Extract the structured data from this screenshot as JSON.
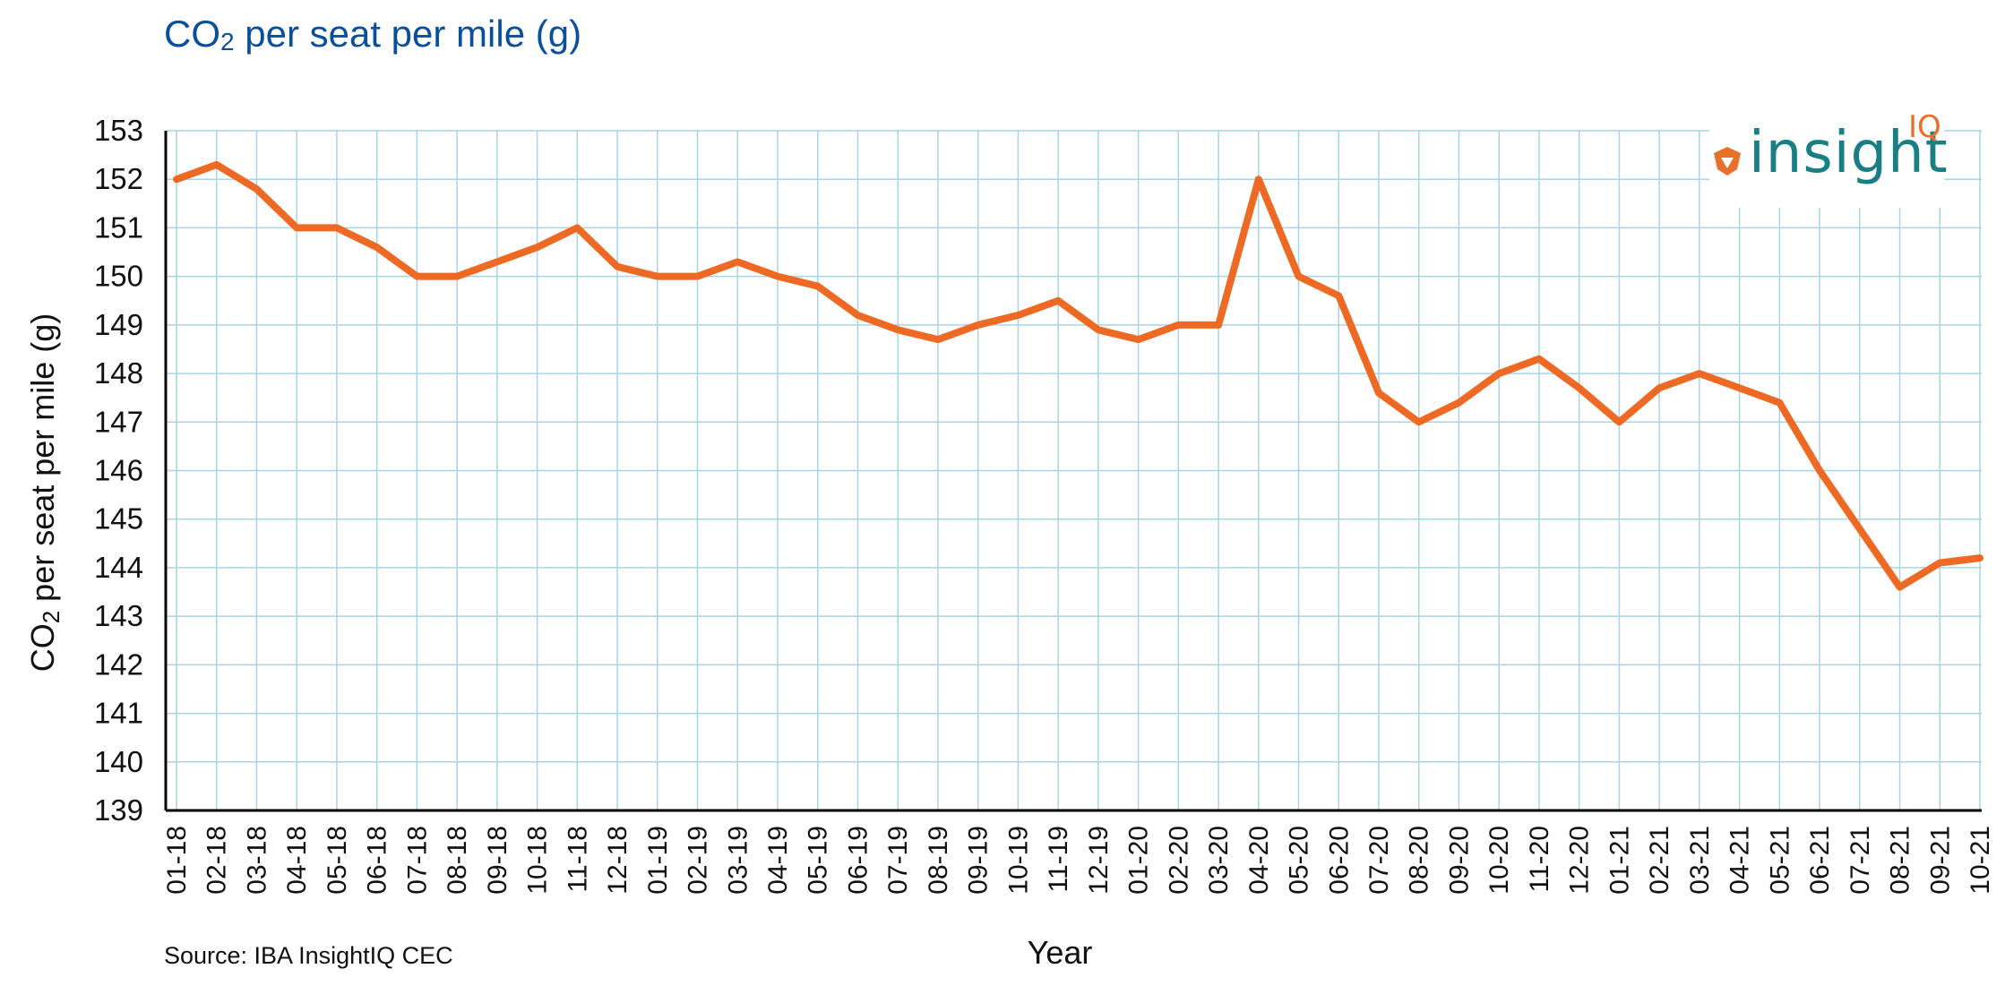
{
  "header": {
    "title_main": "CO",
    "title_sub": "2",
    "title_rest": " per seat per mile (g)"
  },
  "footer": {
    "source": "Source: IBA InsightIQ CEC"
  },
  "logo": {
    "text": "insight",
    "suffix": "IQ",
    "accent": "#e8702a",
    "text_color": "#1a7f84"
  },
  "colors": {
    "line": "#ee6a24",
    "grid": "#a9d4e4",
    "axis": "#000000",
    "title": "#0a4f9c"
  },
  "chart_data": {
    "type": "line",
    "ylabel_main": "CO",
    "ylabel_sub": "2",
    "ylabel_rest": " per seat per mile (g)",
    "xlabel": "Year",
    "ylim": [
      139,
      153
    ],
    "yticks": [
      139,
      140,
      141,
      142,
      143,
      144,
      145,
      146,
      147,
      148,
      149,
      150,
      151,
      152,
      153
    ],
    "grid": true,
    "categories": [
      "01-18",
      "02-18",
      "03-18",
      "04-18",
      "05-18",
      "06-18",
      "07-18",
      "08-18",
      "09-18",
      "10-18",
      "11-18",
      "12-18",
      "01-19",
      "02-19",
      "03-19",
      "04-19",
      "05-19",
      "06-19",
      "07-19",
      "08-19",
      "09-19",
      "10-19",
      "11-19",
      "12-19",
      "01-20",
      "02-20",
      "03-20",
      "04-20",
      "05-20",
      "06-20",
      "07-20",
      "08-20",
      "09-20",
      "10-20",
      "11-20",
      "12-20",
      "01-21",
      "02-21",
      "03-21",
      "04-21",
      "05-21",
      "06-21",
      "07-21",
      "08-21",
      "09-21",
      "10-21"
    ],
    "series": [
      {
        "values": [
          152.0,
          152.3,
          151.8,
          151.0,
          151.0,
          150.6,
          150.0,
          150.0,
          150.3,
          150.6,
          151.0,
          150.2,
          150.0,
          150.0,
          150.3,
          150.0,
          149.8,
          149.2,
          148.9,
          148.7,
          149.0,
          149.2,
          149.5,
          148.9,
          148.7,
          149.0,
          149.0,
          152.0,
          150.0,
          149.6,
          147.6,
          147.0,
          147.4,
          148.0,
          148.3,
          147.7,
          147.0,
          147.7,
          148.0,
          147.7,
          147.4,
          146.0,
          144.8,
          143.6,
          144.1,
          144.2
        ]
      }
    ]
  }
}
